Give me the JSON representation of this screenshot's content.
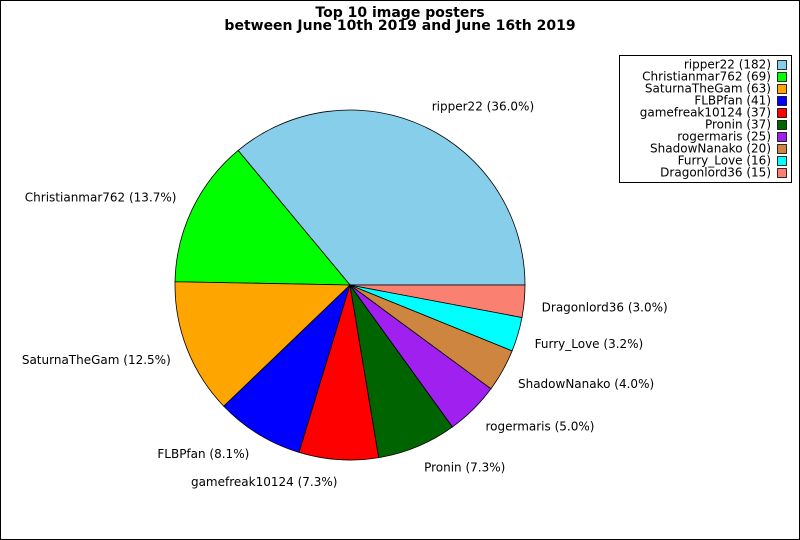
{
  "chart_data": {
    "type": "pie",
    "title": "Top 10 image posters",
    "subtitle": "between June 10th 2019 and June 16th 2019",
    "categories": [
      "ripper22 (182)",
      "Christianmar762 (69)",
      "SaturnaTheGam (63)",
      "FLBPfan (41)",
      "gamefreak10124 (37)",
      "Pronin (37)",
      "rogermaris (25)",
      "ShadowNanako (20)",
      "Furry_Love (16)",
      "Dragonlord36 (15)"
    ],
    "values": [
      182,
      69,
      63,
      41,
      37,
      37,
      25,
      20,
      16,
      15
    ],
    "slice_labels": [
      "ripper22 (36.0%)",
      "Christianmar762 (13.7%)",
      "SaturnaTheGam (12.5%)",
      "FLBPfan (8.1%)",
      "gamefreak10124 (7.3%)",
      "Pronin (7.3%)",
      "rogermaris (5.0%)",
      "ShadowNanako (4.0%)",
      "Furry_Love (3.2%)",
      "Dragonlord36 (3.0%)"
    ],
    "colors": [
      "#87ceeb",
      "#00ff00",
      "#ffa500",
      "#0000ff",
      "#ff0000",
      "#006400",
      "#a020f0",
      "#cd853f",
      "#00ffff",
      "#fa8072"
    ],
    "legend": "upper right"
  }
}
